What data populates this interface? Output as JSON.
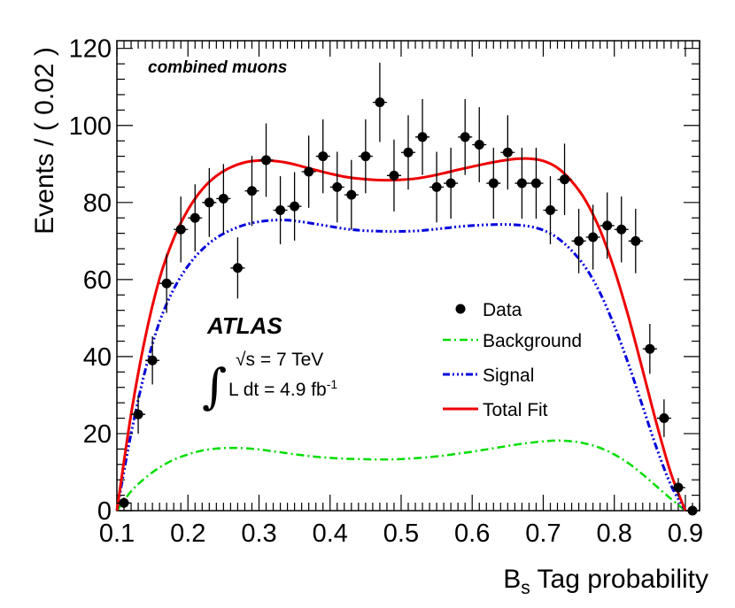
{
  "chart_data": {
    "type": "scatter",
    "xlabel": "B",
    "xlabel_subscript": "s",
    "xlabel_rest": " Tag probability",
    "ylabel": "Events / ( 0.02 )",
    "xlim": [
      0.1,
      0.92
    ],
    "ylim": [
      0,
      122
    ],
    "x_ticks": [
      0.1,
      0.2,
      0.3,
      0.4,
      0.5,
      0.6,
      0.7,
      0.8,
      0.9
    ],
    "x_tick_labels": [
      "0.1",
      "0.2",
      "0.3",
      "0.4",
      "0.5",
      "0.6",
      "0.7",
      "0.8",
      "0.9"
    ],
    "y_ticks": [
      0,
      20,
      40,
      60,
      80,
      100,
      120
    ],
    "y_tick_labels": [
      "0",
      "20",
      "40",
      "60",
      "80",
      "100",
      "120"
    ],
    "channel_label": "combined muons",
    "experiment_label": "ATLAS",
    "energy_label": "√s = 7 TeV",
    "lumi_label": "L dt = 4.9 fb",
    "lumi_superscript": "-1",
    "legend": [
      {
        "key": "data",
        "label": "Data",
        "color": "#000000"
      },
      {
        "key": "background",
        "label": "Background",
        "color": "#00dd00"
      },
      {
        "key": "signal",
        "label": "Signal",
        "color": "#0000dd"
      },
      {
        "key": "total",
        "label": "Total Fit",
        "color": "#ee0000"
      }
    ],
    "data": {
      "x": [
        0.11,
        0.13,
        0.15,
        0.17,
        0.19,
        0.21,
        0.23,
        0.25,
        0.27,
        0.29,
        0.31,
        0.33,
        0.35,
        0.37,
        0.39,
        0.41,
        0.43,
        0.45,
        0.47,
        0.49,
        0.51,
        0.53,
        0.55,
        0.57,
        0.59,
        0.61,
        0.63,
        0.65,
        0.67,
        0.69,
        0.71,
        0.73,
        0.75,
        0.77,
        0.79,
        0.81,
        0.83,
        0.85,
        0.87,
        0.89,
        0.91
      ],
      "y": [
        2,
        25,
        39,
        59,
        73,
        76,
        80,
        81,
        63,
        83,
        91,
        78,
        79,
        88,
        92,
        84,
        82,
        92,
        106,
        87,
        93,
        97,
        84,
        85,
        97,
        95,
        85,
        93,
        85,
        85,
        78,
        86,
        70,
        71,
        74,
        73,
        70,
        42,
        24,
        6,
        0
      ]
    },
    "curves": {
      "x": [
        0.1,
        0.12,
        0.14,
        0.16,
        0.18,
        0.2,
        0.22,
        0.24,
        0.26,
        0.28,
        0.3,
        0.32,
        0.34,
        0.36,
        0.38,
        0.4,
        0.42,
        0.44,
        0.46,
        0.48,
        0.5,
        0.52,
        0.54,
        0.56,
        0.58,
        0.6,
        0.62,
        0.64,
        0.66,
        0.68,
        0.7,
        0.72,
        0.74,
        0.76,
        0.78,
        0.8,
        0.82,
        0.84,
        0.86,
        0.88,
        0.9
      ],
      "background": [
        0,
        5,
        8.5,
        11.2,
        13.2,
        14.6,
        15.6,
        16.1,
        16.3,
        16.2,
        15.9,
        15.4,
        14.9,
        14.4,
        14,
        13.7,
        13.5,
        13.4,
        13.3,
        13.3,
        13.4,
        13.6,
        13.9,
        14.3,
        14.8,
        15.3,
        15.9,
        16.5,
        17.1,
        17.6,
        18,
        18.2,
        18,
        17.4,
        16.3,
        14.6,
        12.3,
        9.4,
        6.2,
        3,
        0
      ],
      "signal": [
        0,
        20,
        36.5,
        49,
        57.5,
        63.5,
        67.8,
        70.8,
        72.8,
        74.2,
        75,
        75.4,
        75.4,
        75,
        74.4,
        73.8,
        73.2,
        72.8,
        72.6,
        72.5,
        72.5,
        72.6,
        72.9,
        73.3,
        73.7,
        74,
        74.2,
        74.3,
        74.2,
        73.8,
        72.8,
        70.8,
        67.5,
        63,
        56.5,
        48,
        38,
        27,
        16,
        6.5,
        0
      ],
      "total": [
        0,
        25,
        45,
        60.2,
        70.7,
        78.1,
        83.4,
        86.9,
        89.1,
        90.4,
        90.9,
        90.8,
        90.3,
        89.4,
        88.4,
        87.5,
        86.7,
        86.2,
        85.9,
        85.8,
        85.9,
        86.2,
        86.8,
        87.6,
        88.5,
        89.3,
        90.1,
        90.8,
        91.3,
        91.4,
        90.8,
        89,
        85.5,
        80.4,
        72.8,
        62.6,
        50.3,
        36.4,
        22.2,
        9.5,
        0
      ]
    }
  }
}
